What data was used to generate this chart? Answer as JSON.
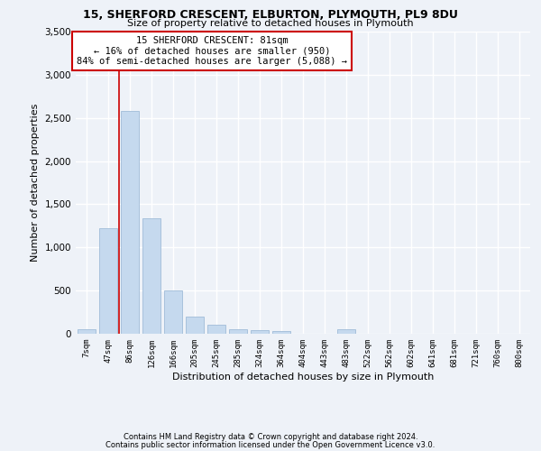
{
  "title_line1": "15, SHERFORD CRESCENT, ELBURTON, PLYMOUTH, PL9 8DU",
  "title_line2": "Size of property relative to detached houses in Plymouth",
  "xlabel": "Distribution of detached houses by size in Plymouth",
  "ylabel": "Number of detached properties",
  "categories": [
    "7sqm",
    "47sqm",
    "86sqm",
    "126sqm",
    "166sqm",
    "205sqm",
    "245sqm",
    "285sqm",
    "324sqm",
    "364sqm",
    "404sqm",
    "443sqm",
    "483sqm",
    "522sqm",
    "562sqm",
    "602sqm",
    "641sqm",
    "681sqm",
    "721sqm",
    "760sqm",
    "800sqm"
  ],
  "values": [
    55,
    1220,
    2580,
    1340,
    500,
    195,
    105,
    55,
    45,
    35,
    0,
    0,
    50,
    0,
    0,
    0,
    0,
    0,
    0,
    0,
    0
  ],
  "bar_color": "#c5d9ee",
  "bar_edge_color": "#a0bcd8",
  "vline_x_idx": 2,
  "annotation_text": "15 SHERFORD CRESCENT: 81sqm\n← 16% of detached houses are smaller (950)\n84% of semi-detached houses are larger (5,088) →",
  "annotation_box_color": "#ffffff",
  "annotation_box_edge_color": "#cc0000",
  "vline_color": "#cc0000",
  "ylim": [
    0,
    3500
  ],
  "yticks": [
    0,
    500,
    1000,
    1500,
    2000,
    2500,
    3000,
    3500
  ],
  "background_color": "#eef2f8",
  "grid_color": "#ffffff",
  "footer_line1": "Contains HM Land Registry data © Crown copyright and database right 2024.",
  "footer_line2": "Contains public sector information licensed under the Open Government Licence v3.0."
}
